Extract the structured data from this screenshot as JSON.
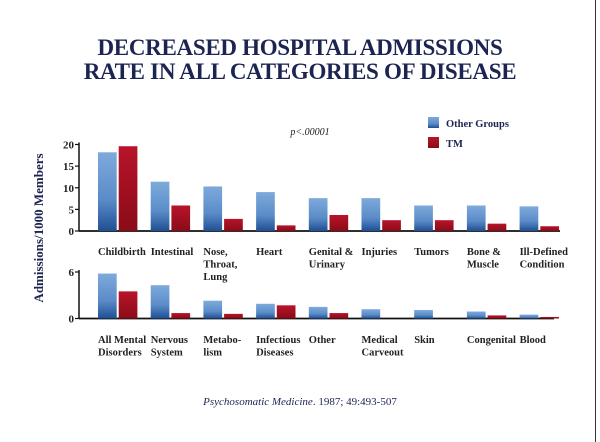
{
  "title_lines": [
    "DECREASED HOSPITAL ADMISSIONS",
    "RATE IN ALL CATEGORIES OF DISEASE"
  ],
  "citation": {
    "journal": "Psychosomatic Medicine",
    "details": ". 1987; 49:493-507"
  },
  "colors": {
    "other_groups": "#5b8cc8",
    "other_groups_dark": "#1f4f94",
    "tm": "#b01021",
    "tm_dark": "#7a0a16",
    "title": "#1c2452"
  },
  "chart_data": [
    {
      "type": "bar",
      "title": "DECREASED HOSPITAL ADMISSIONS RATE IN ALL CATEGORIES OF DISEASE",
      "ylabel": "Admissions/1000 Members",
      "xlabel": "",
      "ylim": [
        0,
        20
      ],
      "yticks": [
        0,
        5,
        10,
        15,
        20
      ],
      "annotation": "p<.00001",
      "legend": [
        "Other Groups",
        "TM"
      ],
      "legend_position": "top-right",
      "grid": false,
      "categories": [
        [
          "Childbirth"
        ],
        [
          "Intestinal"
        ],
        [
          "Nose,",
          "Throat,",
          "Lung"
        ],
        [
          "Heart"
        ],
        [
          "Genital &",
          "Urinary"
        ],
        [
          "Injuries"
        ],
        [
          "Tumors"
        ],
        [
          "Bone &",
          "Muscle"
        ],
        [
          "Ill-Defined",
          "Condition"
        ]
      ],
      "series": [
        {
          "name": "Other Groups",
          "values": [
            18.2,
            11.4,
            10.3,
            9.0,
            7.6,
            7.6,
            5.9,
            5.9,
            5.7
          ]
        },
        {
          "name": "TM",
          "values": [
            19.6,
            5.9,
            2.8,
            1.3,
            3.7,
            2.5,
            2.5,
            1.7,
            1.1
          ]
        }
      ]
    },
    {
      "type": "bar",
      "ylabel": "Admissions/1000 Members",
      "ylim": [
        0,
        6
      ],
      "yticks": [
        0,
        6
      ],
      "grid": false,
      "categories": [
        [
          "All Mental",
          "Disorders"
        ],
        [
          "Nervous",
          "System"
        ],
        [
          "Metabo-",
          "lism"
        ],
        [
          "Infectious",
          "Diseases"
        ],
        [
          "Other"
        ],
        [
          "Medical",
          "Carveout"
        ],
        [
          "Skin"
        ],
        [
          "Congenital"
        ],
        [
          "Blood"
        ]
      ],
      "series": [
        {
          "name": "Other Groups",
          "values": [
            5.8,
            4.3,
            2.3,
            1.9,
            1.5,
            1.2,
            1.1,
            0.9,
            0.5
          ]
        },
        {
          "name": "TM",
          "values": [
            3.5,
            0.7,
            0.6,
            1.7,
            0.7,
            0.0,
            0.0,
            0.4,
            0.2
          ]
        }
      ]
    }
  ]
}
